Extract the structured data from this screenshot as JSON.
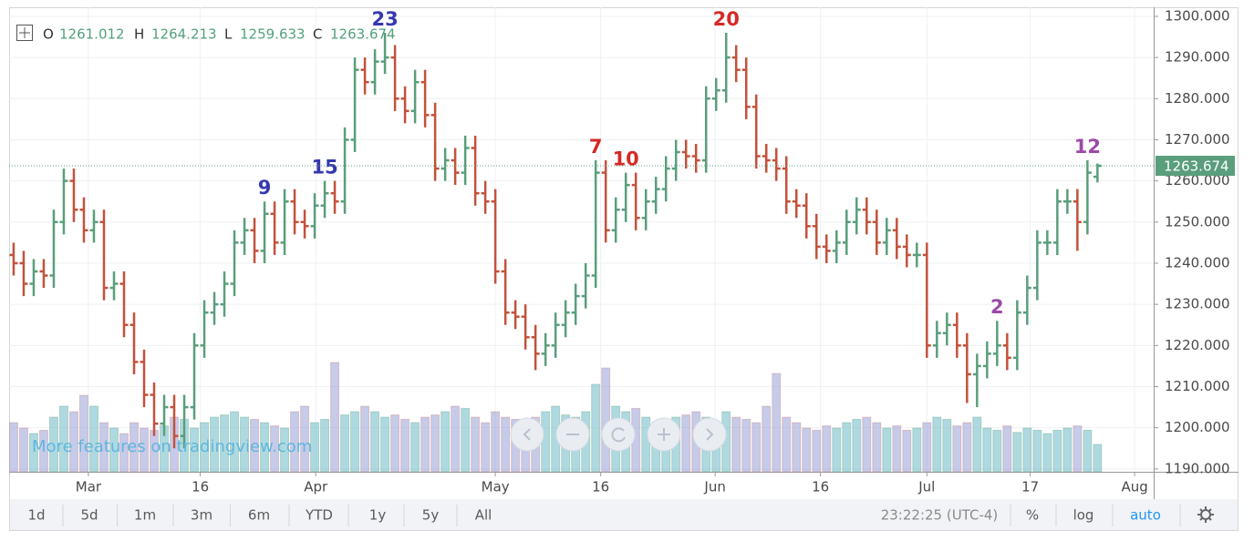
{
  "chart_data": {
    "type": "ohlc",
    "ohlc_labels": [
      "O",
      "H",
      "L",
      "C"
    ],
    "watermark": "More features on tradingview.com",
    "up_color": "#5a9e7c",
    "down_color": "#c4513b",
    "grid": true,
    "xlim": [
      -0.45,
      113.6
    ],
    "xticks": [
      {
        "value": 7.45,
        "label": "Mar"
      },
      {
        "value": 18.6,
        "label": "16"
      },
      {
        "value": 30.1,
        "label": "Apr"
      },
      {
        "value": 48,
        "label": "May"
      },
      {
        "value": 58.5,
        "label": "16"
      },
      {
        "value": 69.9,
        "label": "Jun"
      },
      {
        "value": 80.4,
        "label": "16"
      },
      {
        "value": 91,
        "label": "Jul"
      },
      {
        "value": 101.3,
        "label": "17"
      },
      {
        "value": 111.7,
        "label": "Aug"
      }
    ],
    "ylim": [
      1189.3,
      1302.2
    ],
    "yticks": [
      {
        "value": 1190,
        "label": "1190.000"
      },
      {
        "value": 1200,
        "label": "1200.000"
      },
      {
        "value": 1210,
        "label": "1210.000"
      },
      {
        "value": 1220,
        "label": "1220.000"
      },
      {
        "value": 1230,
        "label": "1230.000"
      },
      {
        "value": 1240,
        "label": "1240.000"
      },
      {
        "value": 1250,
        "label": "1250.000"
      },
      {
        "value": 1260,
        "label": "1260.000"
      },
      {
        "value": 1270,
        "label": "1270.000"
      },
      {
        "value": 1280,
        "label": "1280.000"
      },
      {
        "value": 1290,
        "label": "1290.000"
      },
      {
        "value": 1300,
        "label": "1300.000"
      }
    ],
    "open": [
      1242,
      1240,
      1235,
      1238,
      1237,
      1250,
      1260,
      1253,
      1248,
      1250,
      1234,
      1235,
      1225,
      1216,
      1208,
      1201,
      1205,
      1198,
      1205,
      1220,
      1228,
      1230,
      1235,
      1245,
      1248,
      1243,
      1252,
      1245,
      1255,
      1250,
      1249,
      1254,
      1257,
      1255,
      1270,
      1287,
      1284,
      1289,
      1290,
      1280,
      1277,
      1284,
      1276,
      1263,
      1265,
      1262,
      1268,
      1257,
      1255,
      1238,
      1228,
      1227,
      1222,
      1218,
      1220,
      1225,
      1228,
      1232,
      1237,
      1262,
      1248,
      1253,
      1259,
      1251,
      1255,
      1258,
      1263,
      1267,
      1266,
      1265,
      1280,
      1282,
      1290,
      1287,
      1278,
      1266,
      1265,
      1263,
      1255,
      1254,
      1249,
      1244,
      1243,
      1245,
      1250,
      1253,
      1250,
      1245,
      1248,
      1244,
      1242,
      1242,
      1220,
      1223,
      1225,
      1220,
      1213,
      1215,
      1218,
      1220,
      1217,
      1228,
      1234,
      1245,
      1245,
      1255,
      1255,
      1250,
      1261.012
    ],
    "high": [
      1245,
      1243,
      1241,
      1241,
      1253,
      1263,
      1263,
      1256,
      1253,
      1253,
      1238,
      1238,
      1228,
      1219,
      1211,
      1208,
      1208,
      1208,
      1223,
      1231,
      1233,
      1238,
      1248,
      1251,
      1251,
      1255,
      1255,
      1258,
      1258,
      1253,
      1257,
      1260,
      1260,
      1273,
      1290,
      1290,
      1292,
      1296,
      1293,
      1283,
      1287,
      1287,
      1279,
      1268,
      1268,
      1271,
      1271,
      1260,
      1258,
      1241,
      1231,
      1230,
      1225,
      1223,
      1228,
      1231,
      1235,
      1240,
      1265,
      1265,
      1256,
      1262,
      1262,
      1258,
      1261,
      1266,
      1270,
      1270,
      1269,
      1283,
      1285,
      1296,
      1293,
      1290,
      1281,
      1269,
      1268,
      1266,
      1258,
      1257,
      1252,
      1247,
      1248,
      1253,
      1256,
      1256,
      1253,
      1251,
      1251,
      1247,
      1245,
      1245,
      1226,
      1228,
      1228,
      1223,
      1218,
      1221,
      1226,
      1223,
      1231,
      1237,
      1248,
      1248,
      1258,
      1258,
      1258,
      1265,
      1264.213
    ],
    "low": [
      1237,
      1232,
      1232,
      1234,
      1234,
      1247,
      1250,
      1245,
      1245,
      1231,
      1231,
      1222,
      1213,
      1205,
      1198,
      1198,
      1195,
      1195,
      1202,
      1217,
      1225,
      1227,
      1232,
      1242,
      1240,
      1240,
      1242,
      1242,
      1247,
      1246,
      1246,
      1251,
      1252,
      1252,
      1267,
      1281,
      1281,
      1286,
      1277,
      1274,
      1274,
      1273,
      1260,
      1260,
      1259,
      1259,
      1254,
      1252,
      1235,
      1225,
      1224,
      1219,
      1214,
      1215,
      1217,
      1222,
      1225,
      1229,
      1234,
      1245,
      1245,
      1250,
      1248,
      1248,
      1252,
      1255,
      1260,
      1263,
      1262,
      1262,
      1277,
      1279,
      1284,
      1275,
      1263,
      1262,
      1260,
      1252,
      1251,
      1246,
      1241,
      1240,
      1240,
      1242,
      1247,
      1247,
      1242,
      1242,
      1241,
      1239,
      1239,
      1217,
      1217,
      1220,
      1217,
      1206,
      1205,
      1212,
      1215,
      1214,
      1214,
      1225,
      1231,
      1242,
      1242,
      1252,
      1243,
      1247,
      1259.633
    ],
    "close": [
      1240,
      1235,
      1238,
      1237,
      1250,
      1260,
      1253,
      1248,
      1250,
      1234,
      1235,
      1225,
      1216,
      1208,
      1201,
      1205,
      1198,
      1205,
      1220,
      1228,
      1230,
      1235,
      1245,
      1248,
      1243,
      1252,
      1245,
      1255,
      1250,
      1249,
      1254,
      1257,
      1255,
      1270,
      1287,
      1284,
      1289,
      1290,
      1280,
      1277,
      1284,
      1276,
      1263,
      1265,
      1262,
      1268,
      1257,
      1255,
      1238,
      1228,
      1227,
      1222,
      1218,
      1220,
      1225,
      1228,
      1232,
      1237,
      1262,
      1248,
      1253,
      1259,
      1251,
      1255,
      1258,
      1263,
      1267,
      1266,
      1265,
      1280,
      1282,
      1290,
      1287,
      1278,
      1266,
      1265,
      1263,
      1255,
      1254,
      1249,
      1244,
      1243,
      1245,
      1250,
      1253,
      1250,
      1245,
      1248,
      1244,
      1242,
      1242,
      1220,
      1223,
      1225,
      1220,
      1213,
      1215,
      1218,
      1220,
      1217,
      1228,
      1234,
      1245,
      1245,
      1255,
      1255,
      1250,
      1262,
      1263.674
    ],
    "volume": [
      45,
      40,
      35,
      38,
      50,
      60,
      55,
      70,
      60,
      45,
      40,
      35,
      45,
      40,
      38,
      42,
      50,
      48,
      40,
      45,
      50,
      52,
      55,
      50,
      48,
      45,
      42,
      40,
      55,
      60,
      45,
      48,
      100,
      52,
      55,
      60,
      55,
      50,
      52,
      48,
      45,
      50,
      52,
      55,
      60,
      58,
      50,
      45,
      55,
      50,
      48,
      45,
      50,
      55,
      60,
      52,
      50,
      55,
      80,
      95,
      60,
      55,
      58,
      50,
      45,
      48,
      50,
      52,
      55,
      50,
      45,
      55,
      50,
      48,
      45,
      60,
      90,
      50,
      45,
      40,
      38,
      42,
      40,
      45,
      48,
      50,
      45,
      40,
      42,
      38,
      40,
      45,
      50,
      48,
      42,
      45,
      50,
      40,
      38,
      42,
      36,
      40,
      38,
      35,
      38,
      40,
      42,
      38,
      25
    ],
    "annotations": [
      {
        "text": "9",
        "x": 25,
        "color": "#3538b0"
      },
      {
        "text": "15",
        "x": 31,
        "color": "#3538b0"
      },
      {
        "text": "23",
        "x": 37,
        "color": "#3538b0"
      },
      {
        "text": "7",
        "x": 58,
        "color": "#d42a26"
      },
      {
        "text": "10",
        "x": 61,
        "color": "#d42a26"
      },
      {
        "text": "20",
        "x": 71,
        "color": "#d42a26"
      },
      {
        "text": "2",
        "x": 98,
        "color": "#9c49a8"
      },
      {
        "text": "12",
        "x": 107,
        "color": "#9c49a8"
      }
    ]
  },
  "toolbar": {
    "ranges": [
      "1d",
      "5d",
      "1m",
      "3m",
      "6m",
      "YTD",
      "1y",
      "5y",
      "All"
    ],
    "clock": "23:22:25 (UTC-4)",
    "percent": "%",
    "log": "log",
    "auto": "auto"
  }
}
